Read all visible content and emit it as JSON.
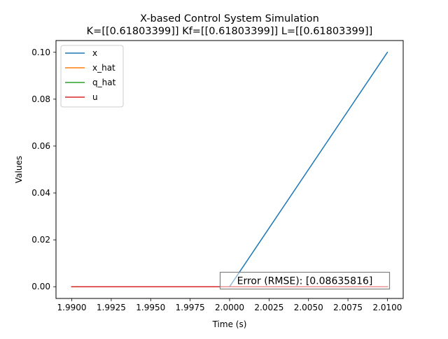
{
  "chart_data": {
    "type": "line",
    "title": "X-based Control System Simulation",
    "subtitle": "K=[[0.61803399]] Kf=[[0.61803399]] L=[[0.61803399]]",
    "xlabel": "Time (s)",
    "ylabel": "Values",
    "xlim": [
      1.989,
      2.011
    ],
    "ylim": [
      -0.005,
      0.105
    ],
    "xticks": [
      1.99,
      1.9925,
      1.995,
      1.9975,
      2.0,
      2.0025,
      2.005,
      2.0075,
      2.01
    ],
    "xtick_labels": [
      "1.9900",
      "1.9925",
      "1.9950",
      "1.9975",
      "2.0000",
      "2.0025",
      "2.0050",
      "2.0075",
      "2.0100"
    ],
    "yticks": [
      0.0,
      0.02,
      0.04,
      0.06,
      0.08,
      0.1
    ],
    "ytick_labels": [
      "0.00",
      "0.02",
      "0.04",
      "0.06",
      "0.08",
      "0.10"
    ],
    "grid": false,
    "legend_position": "upper-left",
    "series": [
      {
        "name": "x",
        "color": "#1f77b4",
        "x": [
          1.99,
          2.0,
          2.01
        ],
        "y": [
          0.0,
          0.0,
          0.1
        ]
      },
      {
        "name": "x_hat",
        "color": "#ff7f0e",
        "x": [
          1.99,
          2.0,
          2.01
        ],
        "y": [
          0.0,
          0.0,
          0.0
        ]
      },
      {
        "name": "q_hat",
        "color": "#2ca02c",
        "x": [
          1.99,
          2.0,
          2.01
        ],
        "y": [
          0.0,
          0.0,
          0.0
        ]
      },
      {
        "name": "u",
        "color": "#d62728",
        "x": [
          1.99,
          2.0,
          2.01
        ],
        "y": [
          0.0,
          0.0,
          0.0
        ]
      }
    ],
    "annotation": {
      "text": "Error (RMSE): [0.08635816]",
      "position": "lower-right"
    }
  }
}
